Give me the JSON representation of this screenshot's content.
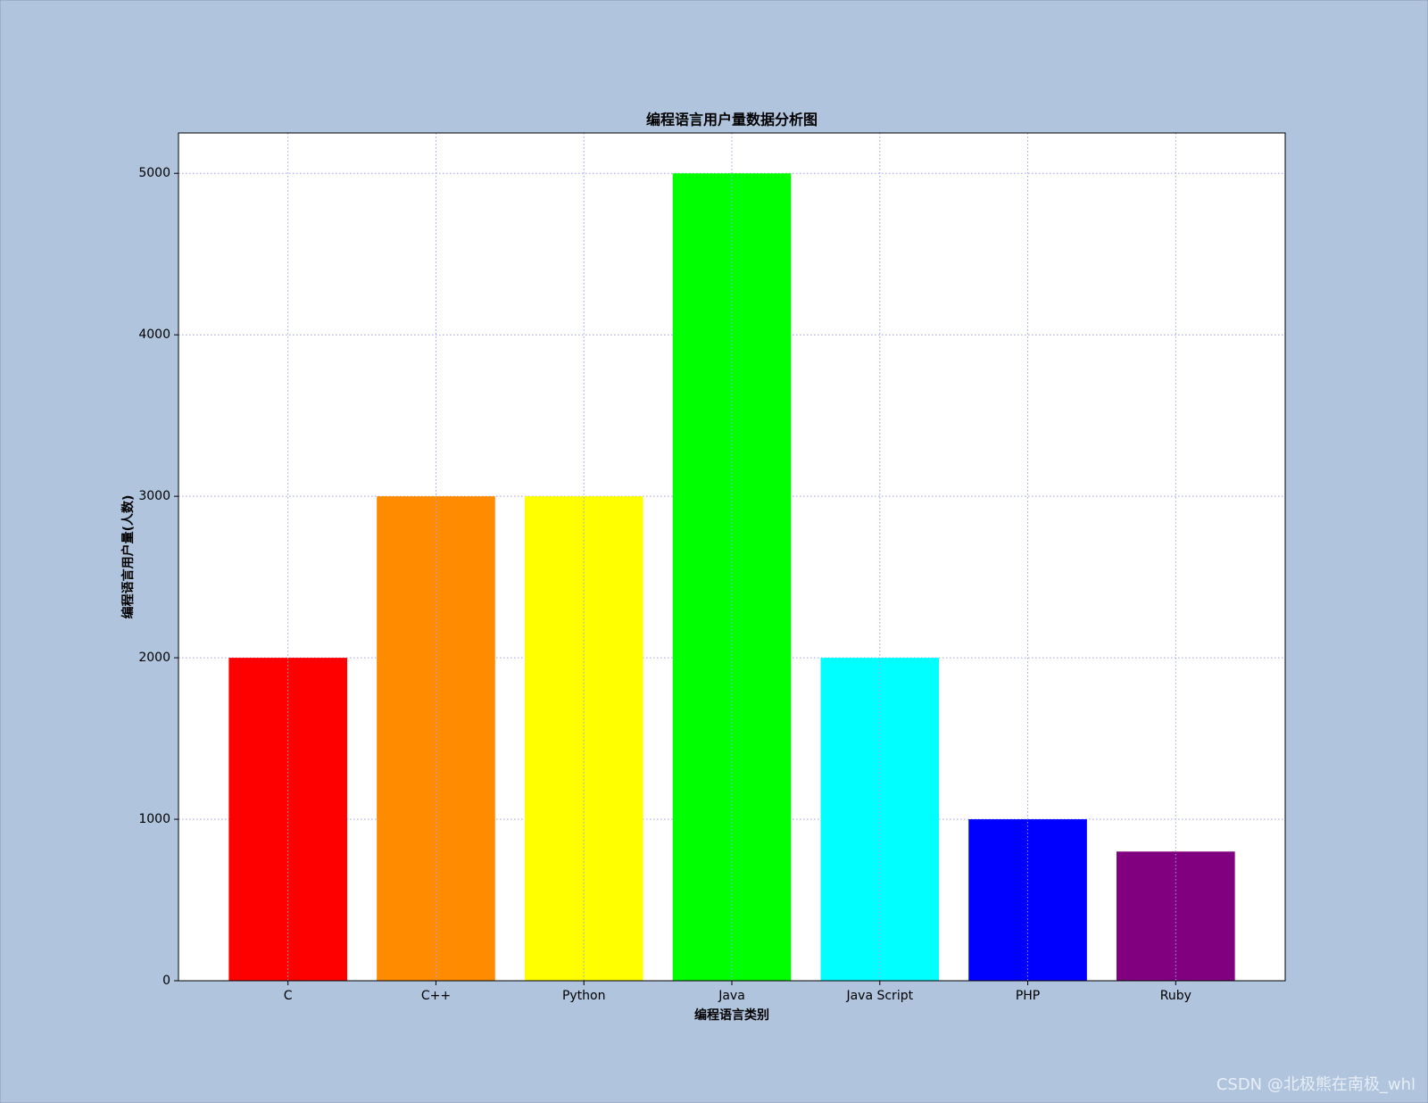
{
  "chart_data": {
    "type": "bar",
    "title": "编程语言用户量数据分析图",
    "x_label": "编程语言类别",
    "y_label": "编程语言用户量(人数)",
    "categories": [
      "C",
      "C++",
      "Python",
      "Java",
      "Java Script",
      "PHP",
      "Ruby"
    ],
    "values": [
      2000,
      3000,
      3000,
      5000,
      2000,
      1000,
      800
    ],
    "colors": [
      "#ff0000",
      "#ff8c00",
      "#ffff00",
      "#00ff00",
      "#00ffff",
      "#0000ff",
      "#800080"
    ],
    "ylim": [
      0,
      5250
    ],
    "yticks": [
      0,
      1000,
      2000,
      3000,
      4000,
      5000
    ],
    "grid": true,
    "watermark": "CSDN @北极熊在南极_whl"
  }
}
